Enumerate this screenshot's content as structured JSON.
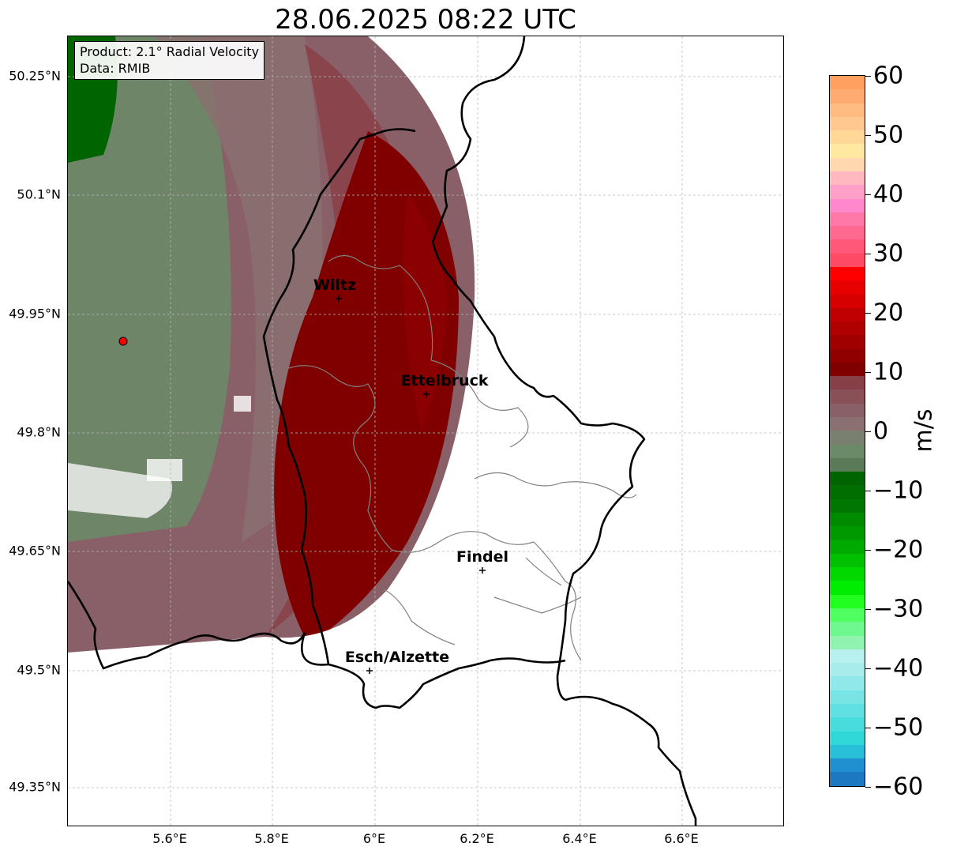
{
  "title": "28.06.2025 08:22 UTC",
  "info": {
    "product": "Product: 2.1° Radial Velocity",
    "data": "Data: RMIB"
  },
  "axes": {
    "y_ticks": [
      "50.25°N",
      "50.1°N",
      "49.95°N",
      "49.8°N",
      "49.65°N",
      "49.5°N",
      "49.35°N"
    ],
    "x_ticks": [
      "5.6°E",
      "5.8°E",
      "6°E",
      "6.2°E",
      "6.4°E",
      "6.6°E"
    ]
  },
  "cities": [
    {
      "name": "Wiltz"
    },
    {
      "name": "Ettelbruck"
    },
    {
      "name": "Findel"
    },
    {
      "name": "Esch/Alzette"
    }
  ],
  "colorbar": {
    "unit": "m/s",
    "ticks": [
      "60",
      "50",
      "40",
      "30",
      "20",
      "10",
      "0",
      "−10",
      "−20",
      "−30",
      "−40",
      "−50",
      "−60"
    ],
    "colors_top_to_bottom": [
      "#ffa060",
      "#ffaa70",
      "#ffbb80",
      "#ffc890",
      "#ffd898",
      "#ffe8a0",
      "#ffd8b0",
      "#ffb8c0",
      "#ffa0c8",
      "#ff88cc",
      "#ff78a8",
      "#ff6890",
      "#ff5878",
      "#ff4a66",
      "#ff0000",
      "#e60000",
      "#d60000",
      "#c00000",
      "#b00000",
      "#a00000",
      "#900000",
      "#800000",
      "#884048",
      "#8a5058",
      "#8a6068",
      "#8a7070",
      "#7a8070",
      "#6a8a68",
      "#5a7a58",
      "#006400",
      "#006e00",
      "#007800",
      "#008a00",
      "#009a00",
      "#00aa00",
      "#00c000",
      "#00d800",
      "#00ec00",
      "#20ff20",
      "#50ff60",
      "#70f890",
      "#90f4b0",
      "#b8f0f0",
      "#a8ecec",
      "#90e8e8",
      "#78e4e4",
      "#60e0e0",
      "#48dcdc",
      "#30d8d8",
      "#28c0d8",
      "#2090d0",
      "#1c78c0"
    ]
  }
}
